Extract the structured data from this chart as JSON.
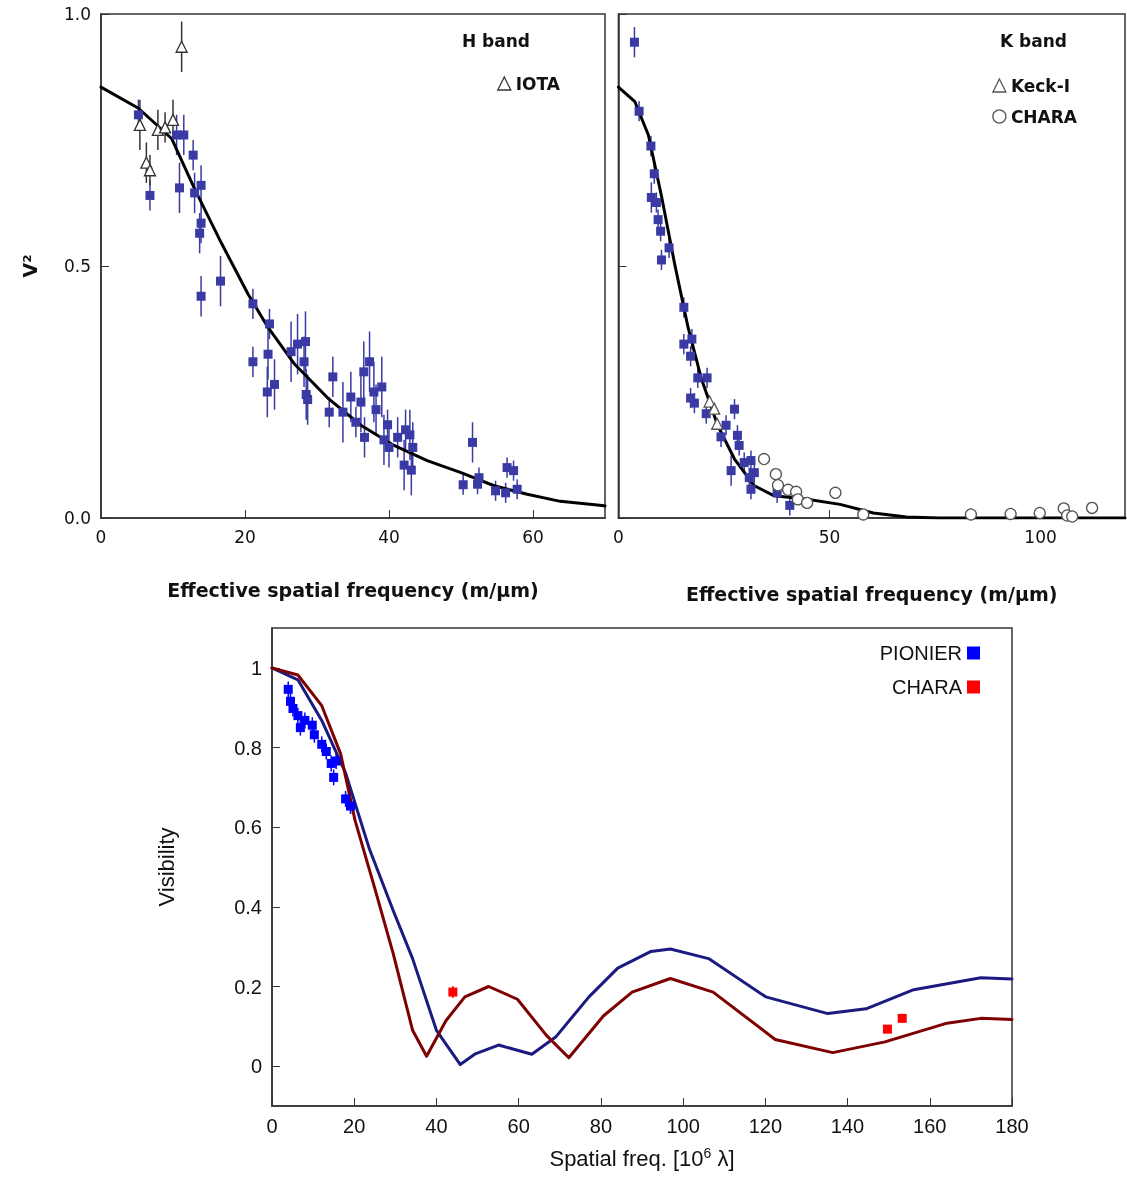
{
  "chart_data": [
    {
      "type": "scatter",
      "legend_title": "H band",
      "xlabel": "Effective spatial frequency (m/μm)",
      "ylabel": "V²",
      "xlim": [
        0,
        70
      ],
      "xticks": [
        0,
        20,
        40,
        60
      ],
      "ylim": [
        0,
        1
      ],
      "yticks": [
        {
          "value": 0,
          "label": "0.0"
        },
        {
          "value": 0.5,
          "label": "0.5"
        },
        {
          "value": 1,
          "label": "1.0"
        }
      ],
      "grid": false,
      "legend": "top right",
      "series": [
        {
          "type": "line",
          "color": "#000000",
          "marker": "none",
          "x": [
            0,
            5.2,
            9.8,
            13,
            16.7,
            20.4,
            23.2,
            26.9,
            31.5,
            36.1,
            40.7,
            45.3,
            50,
            54.6,
            59.2,
            63.8,
            69.6,
            70
          ],
          "values": [
            0.855,
            0.813,
            0.753,
            0.653,
            0.546,
            0.445,
            0.378,
            0.305,
            0.238,
            0.184,
            0.144,
            0.114,
            0.09,
            0.064,
            0.047,
            0.033,
            0.025,
            0.024
          ]
        },
        {
          "color": "#3a3aa5",
          "marker": "square",
          "x": [
            5.2,
            6.8,
            10.5,
            11.5,
            10.9,
            12.8,
            13.9,
            13,
            13.9,
            13.7,
            13.9,
            16.6,
            21.1,
            21.1,
            23.4,
            23.2,
            24.1,
            23.1,
            26.4,
            27.3,
            28.4,
            28.2,
            28.5,
            28.7,
            31.7,
            32.2,
            33.6,
            34.7,
            36.1,
            35.4,
            36.5,
            37.3,
            37.9,
            39,
            38.2,
            36.6,
            39.3,
            39.8,
            40,
            41.2,
            42.3,
            42.9,
            43.3,
            42.1,
            43.1,
            50.3,
            51.6,
            52.5,
            52.3,
            54.8,
            56.2,
            56.4,
            57.3,
            57.8
          ],
          "values": [
            0.8,
            0.64,
            0.76,
            0.76,
            0.655,
            0.72,
            0.66,
            0.645,
            0.585,
            0.565,
            0.44,
            0.47,
            0.425,
            0.31,
            0.385,
            0.325,
            0.265,
            0.25,
            0.33,
            0.345,
            0.35,
            0.31,
            0.245,
            0.235,
            0.21,
            0.28,
            0.21,
            0.24,
            0.23,
            0.19,
            0.29,
            0.31,
            0.25,
            0.26,
            0.215,
            0.16,
            0.155,
            0.185,
            0.14,
            0.16,
            0.175,
            0.165,
            0.14,
            0.105,
            0.095,
            0.066,
            0.15,
            0.08,
            0.067,
            0.054,
            0.05,
            0.1,
            0.094,
            0.057
          ],
          "errors": [
            0.03,
            0.03,
            0.04,
            0.04,
            0.05,
            0.03,
            0.04,
            0.04,
            0.04,
            0.04,
            0.04,
            0.05,
            0.03,
            0.03,
            0.03,
            0.05,
            0.05,
            0.05,
            0.06,
            0.06,
            0.06,
            0.05,
            0.05,
            0.05,
            0.03,
            0.04,
            0.06,
            0.05,
            0.06,
            0.03,
            0.06,
            0.06,
            0.06,
            0.06,
            0.05,
            0.04,
            0.05,
            0.03,
            0.04,
            0.04,
            0.04,
            0.05,
            0.05,
            0.05,
            0.05,
            0.02,
            0.04,
            0.02,
            0.02,
            0.02,
            0.02,
            0.02,
            0.02,
            0.02
          ]
        },
        {
          "name": "IOTA",
          "color": "#333333",
          "marker": "triangle",
          "x": [
            5.4,
            6.3,
            6.8,
            7.9,
            8.9,
            9.8,
            10,
            11.2
          ],
          "values": [
            0.78,
            0.705,
            0.69,
            0.77,
            0.775,
            null,
            0.79,
            0.935
          ],
          "errors": [
            0.05,
            0.04,
            0.03,
            0.04,
            0.03,
            null,
            0.04,
            0.05
          ]
        }
      ]
    },
    {
      "type": "scatter",
      "legend_title": "K band",
      "xlabel": "Effective spatial frequency (m/μm)",
      "xlim": [
        0,
        120
      ],
      "xticks": [
        0,
        50,
        100
      ],
      "ylim": [
        0,
        1
      ],
      "yticks": [
        0,
        0.5,
        1
      ],
      "tick_labels": "x",
      "grid": false,
      "legend": "top right",
      "series": [
        {
          "type": "line",
          "color": "#000000",
          "marker": "none",
          "x": [
            0,
            3.9,
            7.1,
            10.2,
            13.3,
            16.5,
            19.6,
            23.5,
            27.5,
            32.2,
            36.9,
            44.7,
            52.5,
            60.4,
            68.2,
            76,
            120
          ],
          "values": [
            0.855,
            0.826,
            0.76,
            0.639,
            0.505,
            0.378,
            0.278,
            0.184,
            0.117,
            0.064,
            0.044,
            0.037,
            0.027,
            0.01,
            0.002,
            0,
            0
          ]
        },
        {
          "color": "#3a3aa5",
          "marker": "square",
          "x": [
            3.8,
            4.9,
            7.7,
            8.5,
            7.8,
            9,
            9.4,
            10,
            10.2,
            12,
            15.5,
            15.5,
            17.4,
            17.1,
            18.8,
            21,
            17.1,
            18,
            20.8,
            27.5,
            25.5,
            24.3,
            28.2,
            28.6,
            26.7,
            29.8,
            31.4,
            32.2,
            31,
            31.4,
            37.6,
            40.6
          ],
          "values": [
            0.944,
            0.807,
            0.738,
            0.683,
            0.636,
            0.626,
            0.592,
            0.569,
            0.512,
            0.536,
            0.418,
            0.345,
            0.355,
            0.321,
            0.278,
            0.278,
            0.238,
            0.228,
            0.207,
            0.216,
            0.184,
            0.161,
            0.164,
            0.144,
            0.094,
            0.11,
            0.114,
            0.09,
            0.08,
            0.057,
            0.05,
            0.025
          ],
          "errors": [
            0.03,
            0.02,
            0.02,
            0.02,
            0.03,
            0.02,
            0.02,
            0.02,
            0.02,
            0.02,
            0.02,
            0.02,
            0.02,
            0.02,
            0.02,
            0.02,
            0.02,
            0.02,
            0.02,
            0.02,
            0.02,
            0.02,
            0.02,
            0.02,
            0.03,
            0.02,
            0.02,
            0.02,
            0.02,
            0.02,
            0.02,
            0.02
          ]
        },
        {
          "name": "Keck-I",
          "color": "#555555",
          "marker": "triangle",
          "x": [
            21.6,
            22.7,
            23.4
          ],
          "values": [
            0.231,
            0.217,
            0.187
          ],
          "errors": [
            0.01,
            0.01,
            0.01
          ]
        },
        {
          "name": "CHARA",
          "color": "#555555",
          "marker": "circle",
          "x": [
            34.5,
            37.3,
            37.8,
            40.2,
            42.1,
            42.5,
            44.7,
            51.4,
            58,
            83.5,
            92.9,
            99.8,
            105.5,
            106.3,
            107.5,
            112.2
          ],
          "values": [
            0.117,
            0.087,
            0.065,
            0.056,
            0.052,
            0.037,
            0.03,
            0.05,
            0.007,
            0.007,
            0.008,
            0.01,
            0.019,
            0.005,
            0.003,
            0.02
          ],
          "errors": [
            0.01,
            0.01,
            0.01,
            0.01,
            0.01,
            0.01,
            0.01,
            0.01,
            0.01,
            0.01,
            0.01,
            0.01,
            0.01,
            0.01,
            0.01,
            0.01
          ]
        }
      ]
    },
    {
      "type": "scatter",
      "xlabel": "Spatial freq. [10$^{6}$ λ]",
      "ylabel": "Visibility",
      "xlim": [
        0,
        180
      ],
      "xticks": [
        0,
        20,
        40,
        60,
        80,
        100,
        120,
        140,
        160,
        180
      ],
      "ylim": [
        -0.1,
        1.1
      ],
      "yticks": [
        0,
        0.2,
        0.4,
        0.6,
        0.8,
        1
      ],
      "grid": false,
      "legend": "top right",
      "series": [
        {
          "type": "line",
          "color": "#1a1a80",
          "marker": "none",
          "x": [
            0,
            6.3,
            12.1,
            17.9,
            23.7,
            29.5,
            34.2,
            40,
            45.8,
            49.3,
            55.1,
            63.2,
            69,
            77.1,
            84.1,
            92.2,
            96.9,
            106.2,
            120.1,
            135.2,
            144.5,
            156.1,
            172.4,
            180
          ],
          "values": [
            1,
            0.97,
            0.868,
            0.736,
            0.545,
            0.39,
            0.27,
            0.09,
            0.004,
            0.03,
            0.053,
            0.03,
            0.073,
            0.174,
            0.246,
            0.288,
            0.294,
            0.27,
            0.174,
            0.132,
            0.144,
            0.192,
            0.222,
            0.219
          ]
        },
        {
          "type": "line",
          "color": "#7f0000",
          "marker": "none",
          "x": [
            0,
            6.3,
            12.1,
            16.7,
            20.2,
            24.9,
            29.5,
            34.2,
            37.6,
            42.3,
            46.9,
            52.7,
            59.7,
            66.7,
            72.2,
            80.6,
            87.6,
            96.9,
            107.3,
            122.4,
            136.4,
            149.1,
            164.2,
            172.4,
            180
          ],
          "values": [
            1,
            0.982,
            0.905,
            0.784,
            0.617,
            0.45,
            0.282,
            0.09,
            0.025,
            0.114,
            0.174,
            0.2,
            0.168,
            0.078,
            0.021,
            0.126,
            0.186,
            0.22,
            0.186,
            0.067,
            0.034,
            0.061,
            0.108,
            0.12,
            0.117
          ]
        },
        {
          "name": "PIONIER",
          "color": "#0000ff",
          "marker": "square",
          "x": [
            3.95,
            4.5,
            5.1,
            6.3,
            6.9,
            8,
            9.8,
            10.3,
            12.1,
            13.2,
            14.4,
            15.6,
            15,
            17.9,
            19.1
          ],
          "values": [
            0.946,
            0.916,
            0.898,
            0.88,
            0.85,
            0.868,
            0.856,
            0.832,
            0.808,
            0.79,
            0.76,
            0.766,
            0.725,
            0.671,
            0.653
          ],
          "errors": [
            0.02,
            0.02,
            0.02,
            0.02,
            0.02,
            0.02,
            0.02,
            0.02,
            0.02,
            0.02,
            0.02,
            0.02,
            0.02,
            0.02,
            0.02
          ]
        },
        {
          "name": "CHARA",
          "color": "#ff0000",
          "marker": "square",
          "x": [
            44,
            149.7,
            152.9,
            153.3
          ],
          "values": [
            0.186,
            0.093,
            null,
            0.12
          ],
          "errors": [
            0.015,
            0.01,
            null,
            0.01
          ]
        }
      ]
    }
  ]
}
